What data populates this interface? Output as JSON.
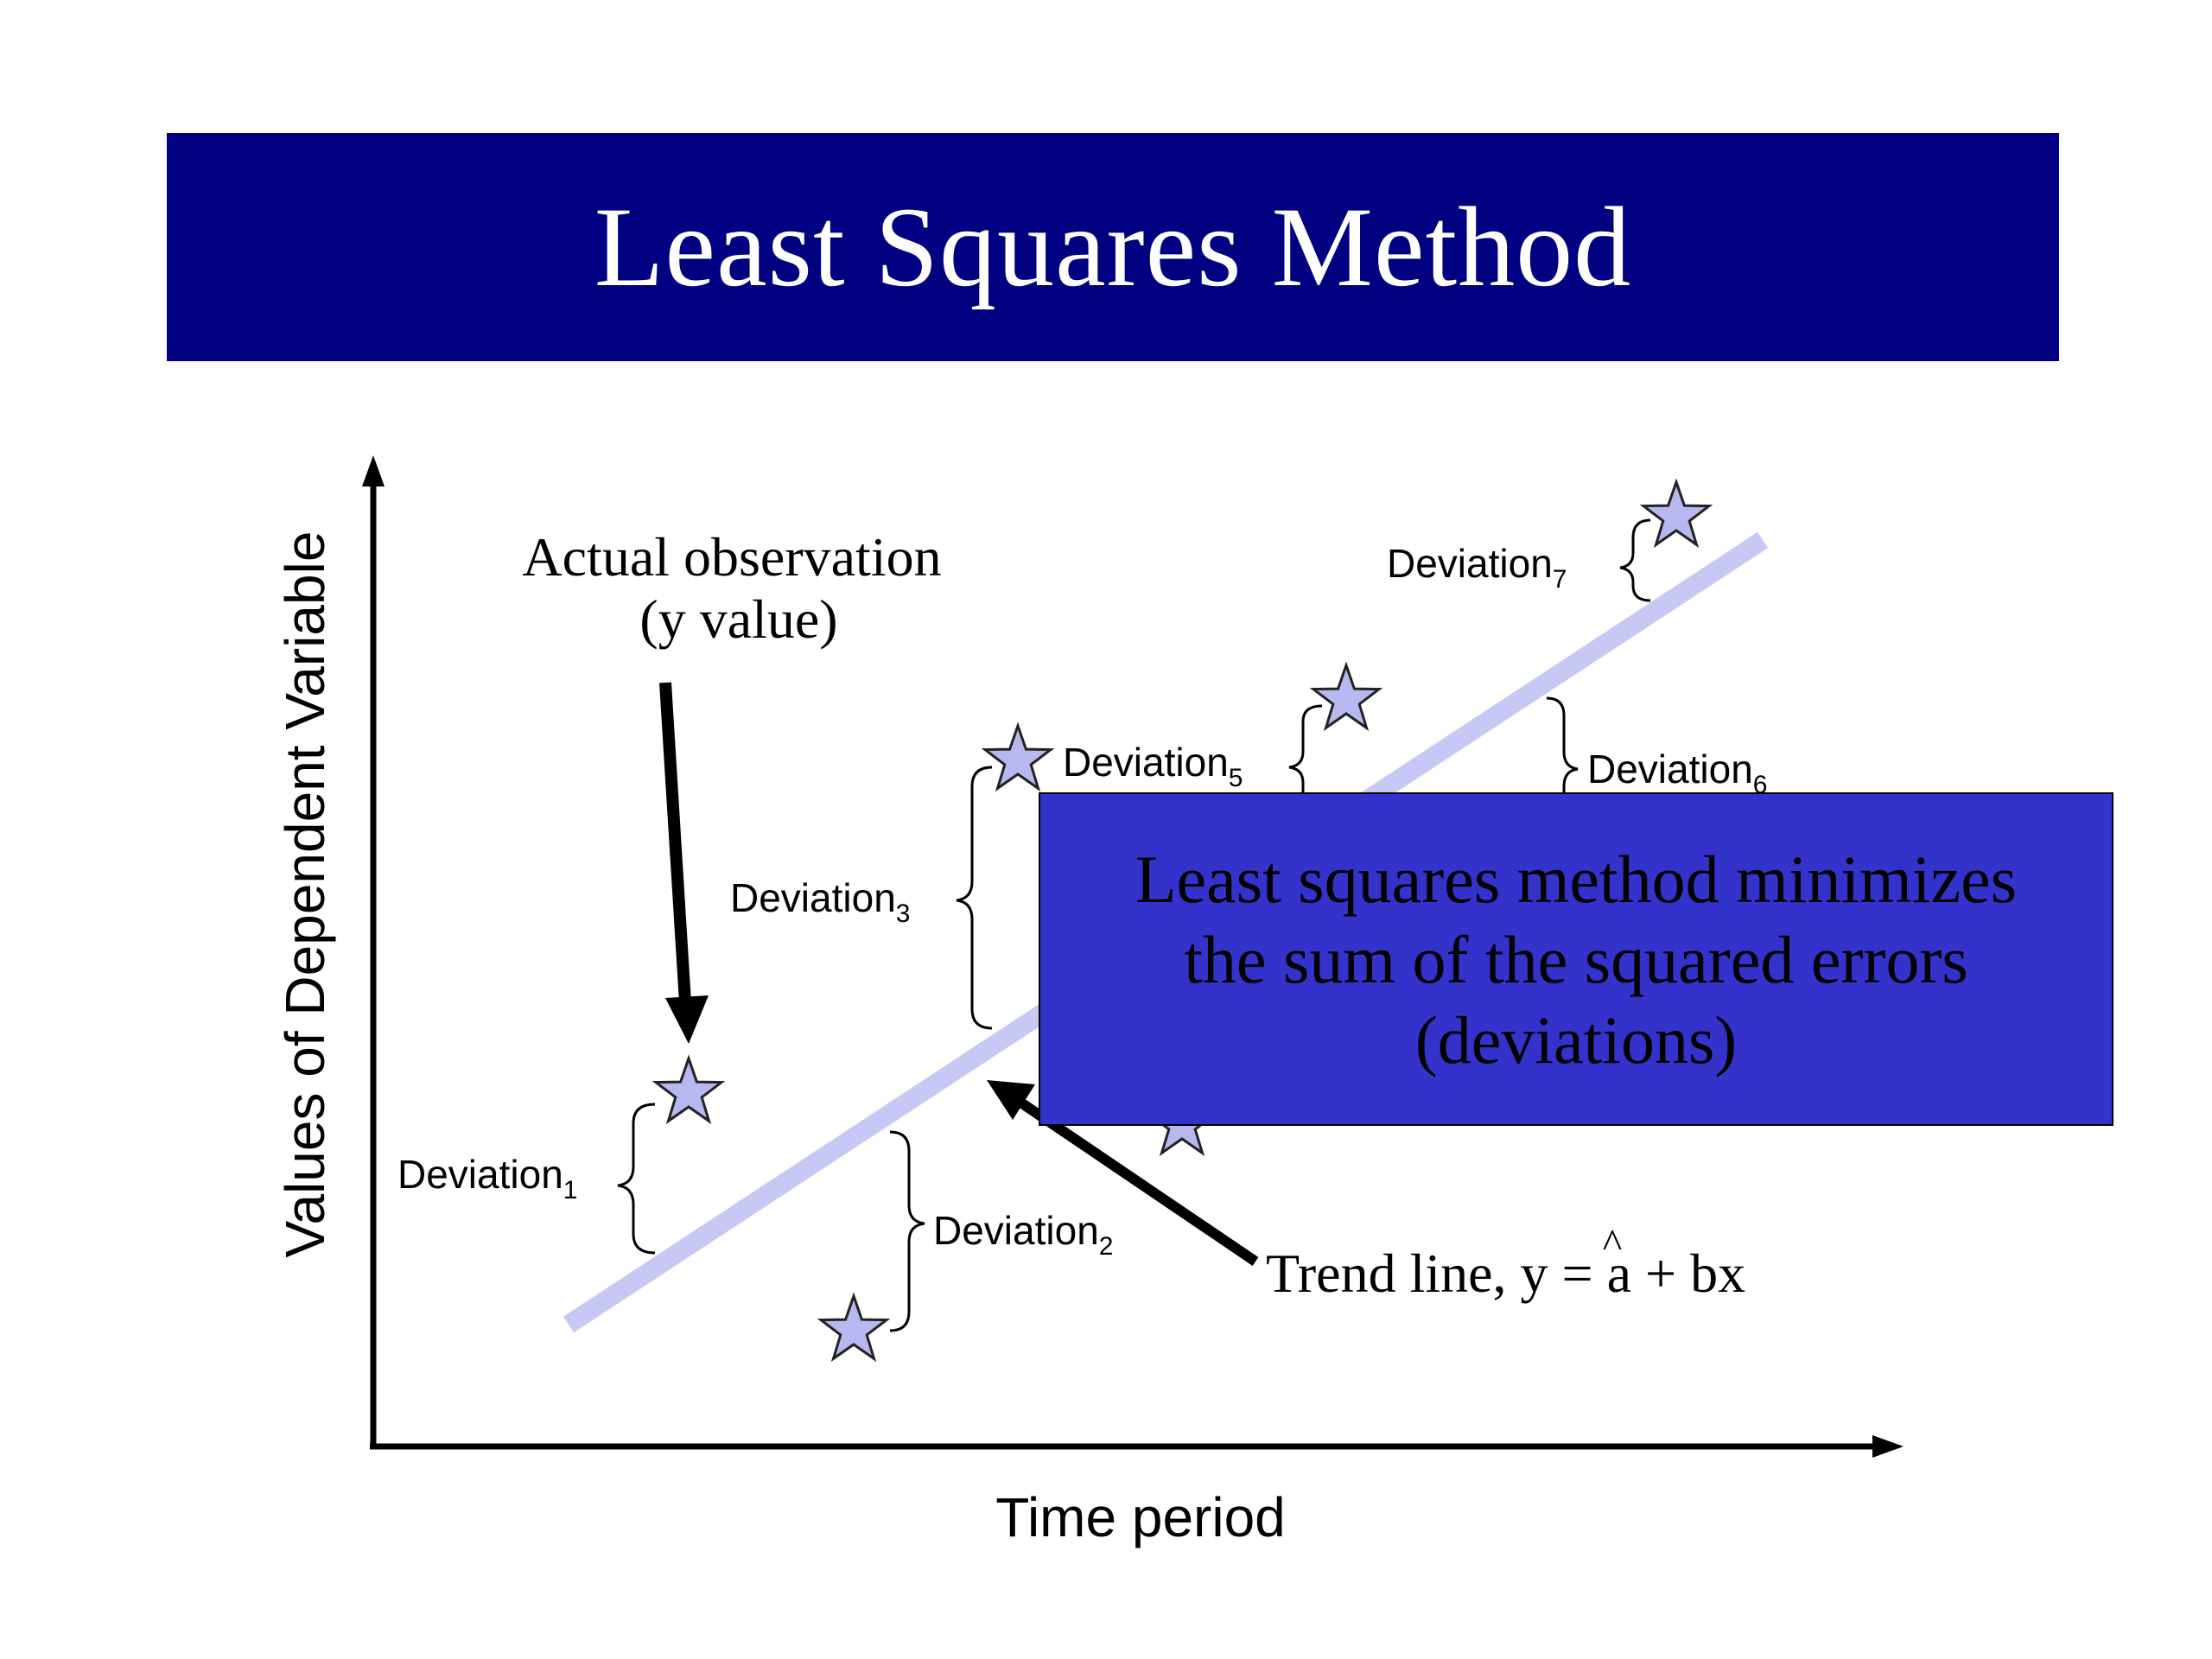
{
  "title": "Least Squares Method",
  "axes": {
    "y_label": "Values of Dependent Variable",
    "x_label": "Time period"
  },
  "annotations": {
    "actual_observation_line1": "Actual observation",
    "actual_observation_line2": "(y value)",
    "trend_line_text": "Trend line, y",
    "trend_line_hat": "^",
    "trend_line_eq": "= a + bx"
  },
  "deviations": [
    {
      "label": "Deviation",
      "sub": "1"
    },
    {
      "label": "Deviation",
      "sub": "2"
    },
    {
      "label": "Deviation",
      "sub": "3"
    },
    {
      "label": "Deviation",
      "sub": "5"
    },
    {
      "label": "Deviation",
      "sub": "6"
    },
    {
      "label": "Deviation",
      "sub": "7"
    }
  ],
  "callout": {
    "line1": "Least squares method minimizes",
    "line2": "the sum of the squared errors",
    "line3": "(deviations)"
  },
  "colors": {
    "title_bg": "#000080",
    "callout_bg": "#3333cc",
    "trend_line": "#c8c8f5",
    "star_fill": "#b8b8f0"
  }
}
